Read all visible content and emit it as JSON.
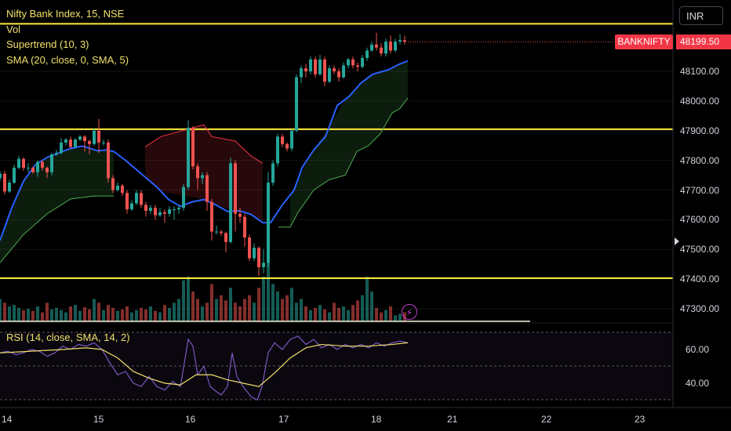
{
  "legend": {
    "title": "Nifty Bank Index, 15, NSE",
    "vol": "Vol",
    "supertrend": "Supertrend (10, 3)",
    "sma": "SMA (20, close, 0, SMA, 5)",
    "rsi": "RSI (14, close, SMA, 14, 2)"
  },
  "toolbar": {
    "currency": "INR"
  },
  "last_price": {
    "symbol": "BANKNIFTY",
    "value": "48199.50"
  },
  "colors": {
    "up": "#26a69a",
    "down": "#ef5350",
    "sma": "#2962ff",
    "supertrend_up": "#4caf50",
    "supertrend_down": "#f23645",
    "hline": "#ffeb3b",
    "rsi": "#7e57c2",
    "rsi_ma": "#f0e16a"
  },
  "icons": {
    "alert": "lightning-icon",
    "scroll": "chevron-right-icon"
  },
  "chart_data": {
    "type": "candlestick",
    "price_axis": {
      "ticks": [
        "48100.00",
        "48000.00",
        "47900.00",
        "47800.00",
        "47700.00",
        "47600.00",
        "47500.00",
        "47400.00",
        "47300.00"
      ]
    },
    "time_axis": {
      "ticks": [
        "14",
        "15",
        "16",
        "17",
        "18",
        "21",
        "22",
        "23"
      ]
    },
    "horizontal_lines": [
      48260,
      47905,
      47403
    ],
    "sma_series": [
      [
        0,
        47530
      ],
      [
        15,
        47640
      ],
      [
        30,
        47730
      ],
      [
        45,
        47785
      ],
      [
        60,
        47810
      ],
      [
        75,
        47825
      ],
      [
        90,
        47840
      ],
      [
        105,
        47848
      ],
      [
        115,
        47840
      ],
      [
        125,
        47832
      ],
      [
        135,
        47835
      ],
      [
        145,
        47830
      ],
      [
        160,
        47800
      ],
      [
        180,
        47755
      ],
      [
        200,
        47710
      ],
      [
        215,
        47668
      ],
      [
        230,
        47645
      ],
      [
        245,
        47660
      ],
      [
        260,
        47668
      ],
      [
        275,
        47650
      ],
      [
        290,
        47628
      ],
      [
        305,
        47630
      ],
      [
        320,
        47618
      ],
      [
        335,
        47590
      ],
      [
        345,
        47590
      ],
      [
        360,
        47650
      ],
      [
        375,
        47700
      ],
      [
        385,
        47775
      ],
      [
        400,
        47835
      ],
      [
        415,
        47880
      ],
      [
        430,
        47985
      ],
      [
        445,
        48015
      ],
      [
        460,
        48060
      ],
      [
        475,
        48090
      ],
      [
        495,
        48105
      ],
      [
        510,
        48125
      ],
      [
        520,
        48135
      ]
    ],
    "supertrend_up": [
      [
        0,
        47455
      ],
      [
        30,
        47550
      ],
      [
        60,
        47620
      ],
      [
        90,
        47670
      ],
      [
        120,
        47680
      ],
      [
        145,
        47680
      ],
      [
        355,
        47575
      ],
      [
        370,
        47575
      ],
      [
        380,
        47625
      ],
      [
        400,
        47700
      ],
      [
        420,
        47735
      ],
      [
        440,
        47750
      ],
      [
        455,
        47830
      ],
      [
        470,
        47850
      ],
      [
        485,
        47890
      ],
      [
        500,
        47960
      ],
      [
        510,
        47975
      ],
      [
        520,
        48010
      ]
    ],
    "supertrend_down": [
      [
        185,
        47845
      ],
      [
        205,
        47880
      ],
      [
        260,
        47920
      ],
      [
        270,
        47880
      ],
      [
        300,
        47865
      ],
      [
        320,
        47815
      ],
      [
        335,
        47790
      ]
    ],
    "candles": [
      [
        0,
        47740,
        47755,
        47765,
        47730
      ],
      [
        6,
        47755,
        47695,
        47765,
        47685
      ],
      [
        12,
        47695,
        47725,
        47735,
        47690
      ],
      [
        18,
        47725,
        47775,
        47785,
        47720
      ],
      [
        24,
        47775,
        47805,
        47815,
        47770
      ],
      [
        30,
        47805,
        47775,
        47810,
        47765
      ],
      [
        36,
        47775,
        47775,
        47790,
        47760
      ],
      [
        42,
        47775,
        47760,
        47780,
        47755
      ],
      [
        48,
        47760,
        47795,
        47800,
        47745
      ],
      [
        54,
        47795,
        47775,
        47800,
        47765
      ],
      [
        60,
        47775,
        47760,
        47780,
        47740
      ],
      [
        66,
        47760,
        47820,
        47825,
        47750
      ],
      [
        72,
        47820,
        47825,
        47835,
        47815
      ],
      [
        78,
        47825,
        47860,
        47875,
        47820
      ],
      [
        84,
        47860,
        47870,
        47875,
        47850
      ],
      [
        90,
        47870,
        47845,
        47880,
        47840
      ],
      [
        96,
        47845,
        47870,
        47875,
        47840
      ],
      [
        102,
        47870,
        47880,
        47885,
        47865
      ],
      [
        108,
        47880,
        47865,
        47885,
        47830
      ],
      [
        114,
        47865,
        47855,
        47870,
        47820
      ],
      [
        120,
        47855,
        47900,
        47910,
        47850
      ],
      [
        126,
        47900,
        47860,
        47940,
        47825
      ],
      [
        132,
        47860,
        47860,
        47870,
        47850
      ],
      [
        138,
        47860,
        47740,
        47870,
        47725
      ],
      [
        144,
        47740,
        47700,
        47750,
        47690
      ],
      [
        150,
        47700,
        47715,
        47725,
        47695
      ],
      [
        156,
        47715,
        47690,
        47720,
        47680
      ],
      [
        162,
        47690,
        47635,
        47700,
        47620
      ],
      [
        168,
        47635,
        47655,
        47665,
        47630
      ],
      [
        174,
        47655,
        47690,
        47700,
        47650
      ],
      [
        180,
        47690,
        47650,
        47700,
        47640
      ],
      [
        186,
        47650,
        47630,
        47660,
        47610
      ],
      [
        192,
        47630,
        47640,
        47650,
        47620
      ],
      [
        198,
        47640,
        47615,
        47650,
        47600
      ],
      [
        204,
        47615,
        47625,
        47640,
        47610
      ],
      [
        210,
        47625,
        47620,
        47635,
        47590
      ],
      [
        216,
        47620,
        47635,
        47645,
        47610
      ],
      [
        222,
        47635,
        47635,
        47645,
        47600
      ],
      [
        228,
        47635,
        47640,
        47650,
        47620
      ],
      [
        234,
        47640,
        47710,
        47720,
        47630
      ],
      [
        240,
        47710,
        47910,
        47935,
        47700
      ],
      [
        246,
        47910,
        47780,
        47915,
        47770
      ],
      [
        252,
        47780,
        47740,
        47790,
        47700
      ],
      [
        258,
        47740,
        47750,
        47760,
        47720
      ],
      [
        264,
        47750,
        47660,
        47760,
        47630
      ],
      [
        270,
        47660,
        47560,
        47670,
        47530
      ],
      [
        276,
        47560,
        47560,
        47580,
        47550
      ],
      [
        282,
        47560,
        47555,
        47565,
        47545
      ],
      [
        288,
        47555,
        47525,
        47560,
        47490
      ],
      [
        294,
        47525,
        47790,
        47810,
        47520
      ],
      [
        300,
        47790,
        47620,
        47800,
        47560
      ],
      [
        306,
        47620,
        47610,
        47640,
        47590
      ],
      [
        312,
        47610,
        47540,
        47620,
        47510
      ],
      [
        318,
        47540,
        47470,
        47550,
        47460
      ],
      [
        324,
        47470,
        47505,
        47520,
        47460
      ],
      [
        330,
        47505,
        47440,
        47510,
        47410
      ],
      [
        336,
        47440,
        47455,
        47500,
        47420
      ],
      [
        342,
        47455,
        47725,
        47760,
        47440
      ],
      [
        348,
        47725,
        47790,
        47800,
        47715
      ],
      [
        354,
        47790,
        47880,
        47890,
        47780
      ],
      [
        360,
        47880,
        47855,
        47890,
        47845
      ],
      [
        366,
        47855,
        47840,
        47860,
        47830
      ],
      [
        372,
        47840,
        47900,
        47905,
        47830
      ],
      [
        378,
        47900,
        48080,
        48090,
        47895
      ],
      [
        384,
        48080,
        48110,
        48120,
        48060
      ],
      [
        390,
        48110,
        48100,
        48125,
        48080
      ],
      [
        396,
        48100,
        48140,
        48150,
        48090
      ],
      [
        402,
        48140,
        48090,
        48150,
        48080
      ],
      [
        408,
        48090,
        48140,
        48155,
        48085
      ],
      [
        414,
        48140,
        48065,
        48150,
        48050
      ],
      [
        420,
        48065,
        48110,
        48120,
        48060
      ],
      [
        426,
        48110,
        48100,
        48120,
        48090
      ],
      [
        432,
        48100,
        48080,
        48110,
        48065
      ],
      [
        438,
        48080,
        48120,
        48130,
        48075
      ],
      [
        444,
        48120,
        48140,
        48145,
        48110
      ],
      [
        450,
        48140,
        48120,
        48150,
        48110
      ],
      [
        456,
        48120,
        48115,
        48130,
        48100
      ],
      [
        462,
        48115,
        48145,
        48155,
        48110
      ],
      [
        468,
        48145,
        48170,
        48180,
        48135
      ],
      [
        474,
        48170,
        48190,
        48200,
        48165
      ],
      [
        480,
        48190,
        48180,
        48230,
        48170
      ],
      [
        486,
        48180,
        48160,
        48195,
        48150
      ],
      [
        492,
        48160,
        48200,
        48210,
        48150
      ],
      [
        498,
        48200,
        48170,
        48220,
        48160
      ],
      [
        504,
        48170,
        48200,
        48210,
        48165
      ],
      [
        510,
        48200,
        48205,
        48225,
        48190
      ],
      [
        516,
        48205,
        48199.5,
        48220,
        48190
      ]
    ],
    "volume": [
      30,
      25,
      20,
      22,
      18,
      15,
      17,
      14,
      20,
      12,
      25,
      16,
      18,
      15,
      12,
      20,
      22,
      14,
      19,
      16,
      30,
      25,
      15,
      22,
      18,
      14,
      16,
      20,
      12,
      15,
      18,
      16,
      20,
      14,
      12,
      22,
      18,
      25,
      30,
      55,
      60,
      40,
      30,
      20,
      25,
      50,
      30,
      35,
      28,
      45,
      25,
      20,
      30,
      35,
      25,
      45,
      60,
      80,
      50,
      40,
      30,
      35,
      45,
      25,
      30,
      20,
      15,
      18,
      22,
      16,
      12,
      25,
      18,
      20,
      15,
      22,
      28,
      35,
      60,
      40,
      18,
      12,
      15,
      20,
      8,
      10,
      12
    ],
    "rsi_panel": {
      "ticks": [
        "60.00",
        "40.00"
      ],
      "rsi": [
        [
          0,
          58
        ],
        [
          10,
          59
        ],
        [
          20,
          57
        ],
        [
          30,
          58
        ],
        [
          40,
          60
        ],
        [
          50,
          59
        ],
        [
          60,
          56
        ],
        [
          70,
          58
        ],
        [
          80,
          62
        ],
        [
          90,
          60
        ],
        [
          100,
          63
        ],
        [
          110,
          62
        ],
        [
          120,
          64
        ],
        [
          130,
          60
        ],
        [
          140,
          52
        ],
        [
          150,
          45
        ],
        [
          160,
          47
        ],
        [
          170,
          40
        ],
        [
          180,
          38
        ],
        [
          190,
          44
        ],
        [
          200,
          38
        ],
        [
          210,
          36
        ],
        [
          220,
          41
        ],
        [
          230,
          38
        ],
        [
          240,
          66
        ],
        [
          246,
          62
        ],
        [
          252,
          45
        ],
        [
          260,
          50
        ],
        [
          268,
          38
        ],
        [
          276,
          35
        ],
        [
          282,
          33
        ],
        [
          290,
          38
        ],
        [
          296,
          58
        ],
        [
          302,
          44
        ],
        [
          310,
          38
        ],
        [
          320,
          32
        ],
        [
          328,
          30
        ],
        [
          334,
          38
        ],
        [
          342,
          58
        ],
        [
          350,
          64
        ],
        [
          360,
          60
        ],
        [
          370,
          66
        ],
        [
          380,
          68
        ],
        [
          390,
          63
        ],
        [
          400,
          66
        ],
        [
          410,
          61
        ],
        [
          420,
          63
        ],
        [
          430,
          60
        ],
        [
          440,
          63
        ],
        [
          450,
          61
        ],
        [
          460,
          63
        ],
        [
          470,
          61
        ],
        [
          480,
          64
        ],
        [
          490,
          62
        ],
        [
          500,
          64
        ],
        [
          510,
          65
        ],
        [
          520,
          64
        ]
      ],
      "rsi_ma": [
        [
          0,
          58
        ],
        [
          40,
          59
        ],
        [
          80,
          60
        ],
        [
          110,
          61
        ],
        [
          130,
          60
        ],
        [
          150,
          55
        ],
        [
          170,
          47
        ],
        [
          190,
          43
        ],
        [
          210,
          40
        ],
        [
          230,
          39
        ],
        [
          250,
          45
        ],
        [
          270,
          45
        ],
        [
          290,
          42
        ],
        [
          310,
          40
        ],
        [
          330,
          38
        ],
        [
          350,
          46
        ],
        [
          370,
          55
        ],
        [
          390,
          61
        ],
        [
          410,
          63
        ],
        [
          440,
          62
        ],
        [
          470,
          62
        ],
        [
          500,
          63
        ],
        [
          520,
          64
        ]
      ]
    }
  }
}
